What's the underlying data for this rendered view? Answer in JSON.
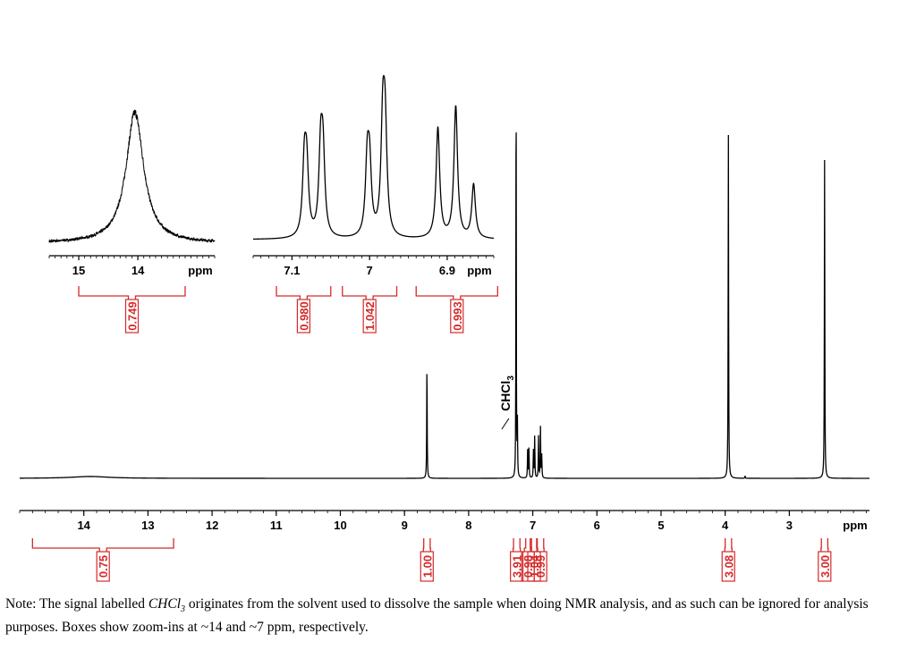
{
  "chart_data": [
    {
      "type": "line",
      "panel": "full spectrum",
      "xlabel": "ppm",
      "xlim": [
        15.0,
        1.75
      ],
      "x_reversed": true,
      "x_ticks": [
        14,
        13,
        12,
        11,
        10,
        9,
        8,
        7,
        6,
        5,
        4,
        3
      ],
      "peaks": [
        {
          "ppm": 13.9,
          "height": 0.004,
          "width": 0.35
        },
        {
          "ppm": 8.65,
          "height": 0.25,
          "width": 0.004
        },
        {
          "ppm": 7.26,
          "height": 1.0,
          "width": 0.003
        },
        {
          "ppm": 7.24,
          "height": 0.12,
          "width": 0.004
        },
        {
          "ppm": 7.08,
          "height": 0.06,
          "width": 0.004
        },
        {
          "ppm": 7.06,
          "height": 0.07,
          "width": 0.004
        },
        {
          "ppm": 6.99,
          "height": 0.06,
          "width": 0.004
        },
        {
          "ppm": 6.97,
          "height": 0.09,
          "width": 0.004
        },
        {
          "ppm": 6.91,
          "height": 0.09,
          "width": 0.004
        },
        {
          "ppm": 6.88,
          "height": 0.11,
          "width": 0.004
        },
        {
          "ppm": 6.86,
          "height": 0.05,
          "width": 0.004
        },
        {
          "ppm": 3.95,
          "height": 0.75,
          "width": 0.004
        },
        {
          "ppm": 3.69,
          "height": 0.005,
          "width": 0.004
        },
        {
          "ppm": 2.45,
          "height": 0.69,
          "width": 0.004
        }
      ],
      "integrals": [
        {
          "from": 14.8,
          "to": 12.6,
          "value": "0.75"
        },
        {
          "from": 8.7,
          "to": 8.6,
          "value": "1.00"
        },
        {
          "from": 7.3,
          "to": 7.2,
          "value": "3.91"
        },
        {
          "from": 7.11,
          "to": 7.04,
          "value": "0.98"
        },
        {
          "from": 7.02,
          "to": 6.94,
          "value": "1.04"
        },
        {
          "from": 6.93,
          "to": 6.83,
          "value": "0.99"
        },
        {
          "from": 4.0,
          "to": 3.9,
          "value": "3.08"
        },
        {
          "from": 2.5,
          "to": 2.4,
          "value": "3.00"
        }
      ],
      "annotations": [
        {
          "ppm": 7.26,
          "text": "CHCl",
          "subscript": "3"
        }
      ]
    },
    {
      "type": "line",
      "panel": "zoom-in ~14 ppm",
      "xlabel": "ppm",
      "xlim": [
        15.5,
        12.7
      ],
      "x_reversed": true,
      "x_ticks": [
        15,
        14
      ],
      "peaks": [
        {
          "ppm": 14.05,
          "height": 1.0,
          "width": 0.18
        }
      ],
      "integrals": [
        {
          "from": 15.0,
          "to": 13.2,
          "value": "0.749"
        }
      ]
    },
    {
      "type": "line",
      "panel": "zoom-in ~7 ppm",
      "xlabel": "ppm",
      "xlim": [
        7.15,
        6.84
      ],
      "x_reversed": true,
      "x_ticks": [
        7.1,
        7.0,
        6.9
      ],
      "peaks": [
        {
          "ppm": 7.084,
          "height": 0.52,
          "width": 0.0028
        },
        {
          "ppm": 7.081,
          "height": 0.48,
          "width": 0.0028
        },
        {
          "ppm": 7.063,
          "height": 0.61,
          "width": 0.0028
        },
        {
          "ppm": 7.06,
          "height": 0.57,
          "width": 0.0028
        },
        {
          "ppm": 7.003,
          "height": 0.52,
          "width": 0.0028
        },
        {
          "ppm": 7.0,
          "height": 0.48,
          "width": 0.0028
        },
        {
          "ppm": 6.983,
          "height": 0.79,
          "width": 0.0028
        },
        {
          "ppm": 6.98,
          "height": 0.75,
          "width": 0.0028
        },
        {
          "ppm": 6.912,
          "height": 0.82,
          "width": 0.0028
        },
        {
          "ppm": 6.889,
          "height": 0.98,
          "width": 0.0028
        },
        {
          "ppm": 6.866,
          "height": 0.4,
          "width": 0.0028
        }
      ],
      "integrals": [
        {
          "from": 7.12,
          "to": 7.05,
          "value": "0.980"
        },
        {
          "from": 7.035,
          "to": 6.965,
          "value": "1.042"
        },
        {
          "from": 6.94,
          "to": 6.835,
          "value": "0.993"
        }
      ]
    }
  ],
  "note": {
    "prefix": "Note: The signal labelled ",
    "solvent": "CHCl",
    "solvent_sub": "3",
    "suffix": " originates from the solvent used to dissolve the sample when doing NMR analysis, and as such can be ignored for analysis purposes. Boxes show zoom-ins at ~14 and ~7 ppm, respectively."
  }
}
